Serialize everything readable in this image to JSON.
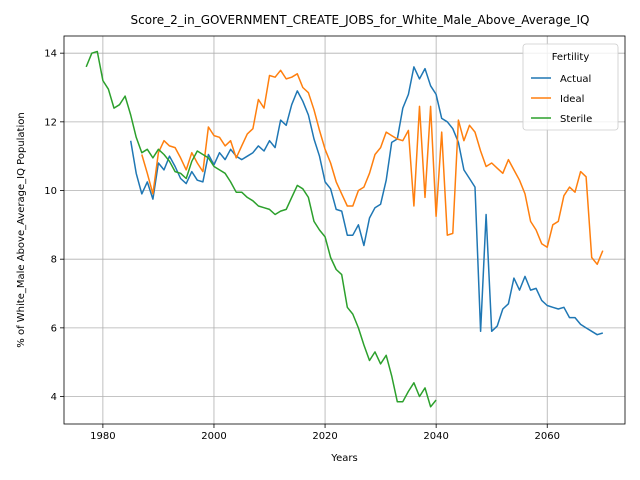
{
  "chart_data": {
    "type": "line",
    "title": "Score_2_in_GOVERNMENT_CREATE_JOBS_for_White_Male_Above_Average_IQ",
    "xlabel": "Years",
    "ylabel": "% of White_Male Above_Average_IQ Population",
    "xlim": [
      1973,
      2074
    ],
    "ylim": [
      3.2,
      14.5
    ],
    "xticks": [
      1980,
      2000,
      2020,
      2040,
      2060
    ],
    "yticks": [
      4,
      6,
      8,
      10,
      12,
      14
    ],
    "grid": true,
    "legend": {
      "title": "Fertility",
      "position": "top-right"
    },
    "series": [
      {
        "name": "Actual",
        "color": "#1f77b4",
        "x": [
          1985,
          1986,
          1987,
          1988,
          1989,
          1990,
          1991,
          1992,
          1993,
          1994,
          1995,
          1996,
          1997,
          1998,
          1999,
          2000,
          2001,
          2002,
          2003,
          2004,
          2005,
          2006,
          2007,
          2008,
          2009,
          2010,
          2011,
          2012,
          2013,
          2014,
          2015,
          2016,
          2017,
          2018,
          2019,
          2020,
          2021,
          2022,
          2023,
          2024,
          2025,
          2026,
          2027,
          2028,
          2029,
          2030,
          2031,
          2032,
          2033,
          2034,
          2035,
          2036,
          2037,
          2038,
          2039,
          2040,
          2041,
          2042,
          2043,
          2044,
          2045,
          2046,
          2047,
          2048,
          2049,
          2050,
          2051,
          2052,
          2053,
          2054,
          2055,
          2056,
          2057,
          2058,
          2059,
          2060,
          2061,
          2062,
          2063,
          2064,
          2065,
          2066,
          2067,
          2068,
          2069,
          2070
        ],
        "y": [
          11.45,
          10.5,
          9.9,
          10.25,
          9.75,
          10.8,
          10.6,
          11.0,
          10.7,
          10.35,
          10.2,
          10.55,
          10.3,
          10.25,
          11.05,
          10.75,
          11.1,
          10.9,
          11.2,
          11.0,
          10.9,
          11.0,
          11.1,
          11.3,
          11.15,
          11.45,
          11.25,
          12.05,
          11.9,
          12.5,
          12.9,
          12.6,
          12.2,
          11.5,
          11.0,
          10.25,
          10.05,
          9.45,
          9.4,
          8.7,
          8.7,
          9.0,
          8.4,
          9.2,
          9.5,
          9.6,
          10.3,
          11.4,
          11.5,
          12.4,
          12.8,
          13.6,
          13.25,
          13.55,
          13.05,
          12.8,
          12.1,
          12.0,
          11.8,
          11.4,
          10.6,
          10.35,
          10.1,
          5.9,
          9.3,
          5.9,
          6.05,
          6.55,
          6.7,
          7.45,
          7.1,
          7.5,
          7.1,
          7.15,
          6.8,
          6.65,
          6.6,
          6.55,
          6.6,
          6.3,
          6.3,
          6.1,
          6.0,
          5.9,
          5.8,
          5.85
        ]
      },
      {
        "name": "Ideal",
        "color": "#ff7f0e",
        "x": [
          1987,
          1988,
          1989,
          1990,
          1991,
          1992,
          1993,
          1994,
          1995,
          1996,
          1997,
          1998,
          1999,
          2000,
          2001,
          2002,
          2003,
          2004,
          2005,
          2006,
          2007,
          2008,
          2009,
          2010,
          2011,
          2012,
          2013,
          2014,
          2015,
          2016,
          2017,
          2018,
          2019,
          2020,
          2021,
          2022,
          2023,
          2024,
          2025,
          2026,
          2027,
          2028,
          2029,
          2030,
          2031,
          2032,
          2033,
          2034,
          2035,
          2036,
          2037,
          2038,
          2039,
          2040,
          2041,
          2042,
          2043,
          2044,
          2045,
          2046,
          2047,
          2048,
          2049,
          2050,
          2051,
          2052,
          2053,
          2054,
          2055,
          2056,
          2057,
          2058,
          2059,
          2060,
          2061,
          2062,
          2063,
          2064,
          2065,
          2066,
          2067,
          2068,
          2069,
          2070
        ],
        "y": [
          11.05,
          10.5,
          9.9,
          11.1,
          11.45,
          11.3,
          11.25,
          10.95,
          10.6,
          11.1,
          10.8,
          10.55,
          11.85,
          11.6,
          11.55,
          11.3,
          11.45,
          10.95,
          11.3,
          11.65,
          11.8,
          12.65,
          12.4,
          13.35,
          13.3,
          13.5,
          13.25,
          13.3,
          13.4,
          13.0,
          12.85,
          12.35,
          11.75,
          11.2,
          10.8,
          10.25,
          9.9,
          9.55,
          9.55,
          10.0,
          10.1,
          10.5,
          11.05,
          11.25,
          11.7,
          11.6,
          11.5,
          11.45,
          11.75,
          9.55,
          12.45,
          9.8,
          12.45,
          9.25,
          11.7,
          8.7,
          8.75,
          12.05,
          11.45,
          11.9,
          11.7,
          11.15,
          10.7,
          10.8,
          10.65,
          10.5,
          10.9,
          10.6,
          10.3,
          9.9,
          9.1,
          8.85,
          8.45,
          8.35,
          9.0,
          9.1,
          9.85,
          10.1,
          9.95,
          10.55,
          10.4,
          8.05,
          7.85,
          8.25
        ]
      },
      {
        "name": "Sterile",
        "color": "#2ca02c",
        "x": [
          1977,
          1978,
          1979,
          1980,
          1981,
          1982,
          1983,
          1984,
          1985,
          1986,
          1987,
          1988,
          1989,
          1990,
          1991,
          1992,
          1993,
          1994,
          1995,
          1996,
          1997,
          1998,
          1999,
          2000,
          2001,
          2002,
          2003,
          2004,
          2005,
          2006,
          2007,
          2008,
          2009,
          2010,
          2011,
          2012,
          2013,
          2014,
          2015,
          2016,
          2017,
          2018,
          2019,
          2020,
          2021,
          2022,
          2023,
          2024,
          2025,
          2026,
          2027,
          2028,
          2029,
          2030,
          2031,
          2032,
          2033,
          2034,
          2035,
          2036,
          2037,
          2038,
          2039,
          2040
        ],
        "y": [
          13.6,
          14.0,
          14.05,
          13.2,
          12.95,
          12.4,
          12.5,
          12.75,
          12.2,
          11.55,
          11.1,
          11.2,
          10.95,
          11.2,
          11.05,
          10.85,
          10.55,
          10.5,
          10.35,
          10.85,
          11.15,
          11.05,
          10.95,
          10.7,
          10.6,
          10.5,
          10.25,
          9.95,
          9.95,
          9.8,
          9.7,
          9.55,
          9.5,
          9.45,
          9.3,
          9.4,
          9.45,
          9.8,
          10.15,
          10.05,
          9.8,
          9.1,
          8.85,
          8.65,
          8.05,
          7.7,
          7.55,
          6.6,
          6.4,
          6.0,
          5.5,
          5.05,
          5.3,
          4.95,
          5.2,
          4.6,
          3.85,
          3.85,
          4.15,
          4.4,
          4.0,
          4.25,
          3.7,
          3.9
        ]
      }
    ]
  }
}
